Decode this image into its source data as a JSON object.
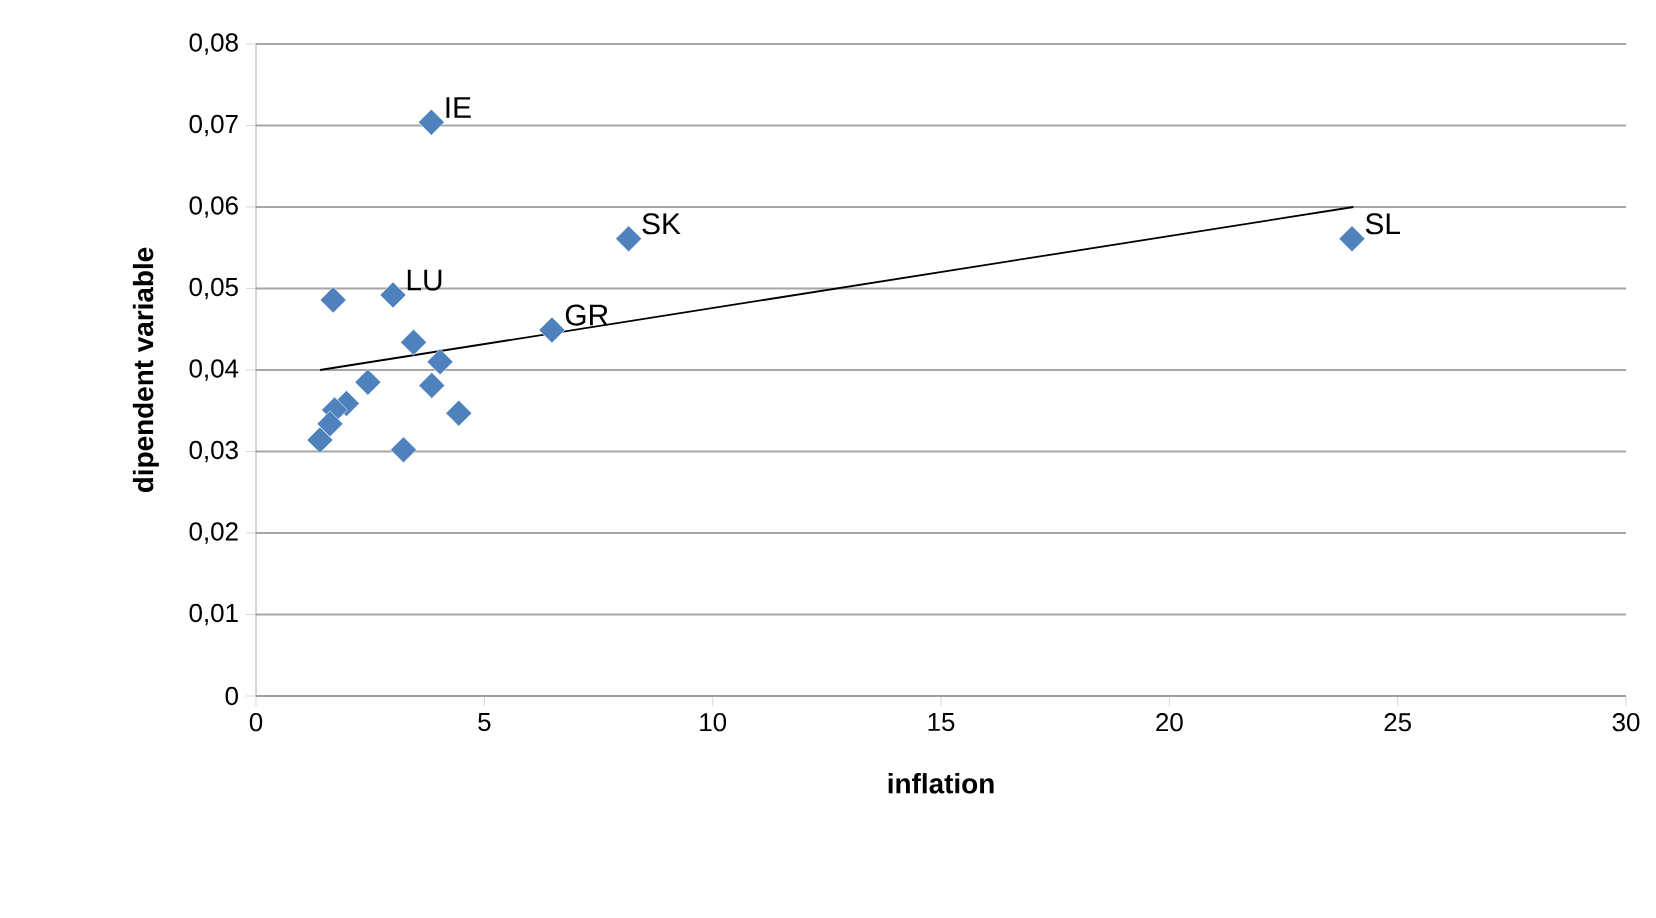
{
  "chart_data": {
    "type": "scatter",
    "xlabel": "inflation",
    "ylabel": "dipendent variable",
    "xlim": [
      0,
      30
    ],
    "xticks": [
      0,
      5,
      10,
      15,
      20,
      25,
      30
    ],
    "ylim": [
      0,
      0.08
    ],
    "yticks": [
      0,
      {
        "value": 0.01,
        "label": "0,01"
      },
      {
        "value": 0.02,
        "label": "0,02"
      },
      {
        "value": 0.03,
        "label": "0,03"
      },
      {
        "value": 0.04,
        "label": "0,04"
      },
      {
        "value": 0.05,
        "label": "0,05"
      },
      {
        "value": 0.06,
        "label": "0,06"
      },
      {
        "value": 0.07,
        "label": "0,07"
      },
      {
        "value": 0.08,
        "label": "0,08"
      }
    ],
    "grid": "y",
    "marker": "diamond",
    "series": [
      {
        "color": "#4f81bd",
        "x": [
          3.84,
          8.16,
          3.0,
          1.69,
          6.48,
          3.45,
          4.03,
          2.45,
          3.85,
          4.44,
          1.98,
          1.72,
          1.62,
          1.4,
          3.23,
          24.0
        ],
        "values": [
          0.0704,
          0.0561,
          0.0492,
          0.0486,
          0.0449,
          0.0434,
          0.041,
          0.0385,
          0.0381,
          0.0347,
          0.0359,
          0.0351,
          0.0334,
          0.0314,
          0.0302,
          0.0561
        ]
      },
      {
        "type": "line",
        "color": "#000000",
        "line_style": "solid",
        "marker": "none",
        "x": [
          1.4,
          24.03
        ],
        "values": [
          0.04,
          0.06
        ]
      }
    ],
    "annotations": [
      {
        "text": "IE",
        "x": 3.84,
        "y": 0.0704
      },
      {
        "text": "SK",
        "x": 8.16,
        "y": 0.0561
      },
      {
        "text": "LU",
        "x": 3.0,
        "y": 0.0492
      },
      {
        "text": "GR",
        "x": 6.48,
        "y": 0.0449
      },
      {
        "text": "SL",
        "x": 24.0,
        "y": 0.0561
      }
    ]
  }
}
